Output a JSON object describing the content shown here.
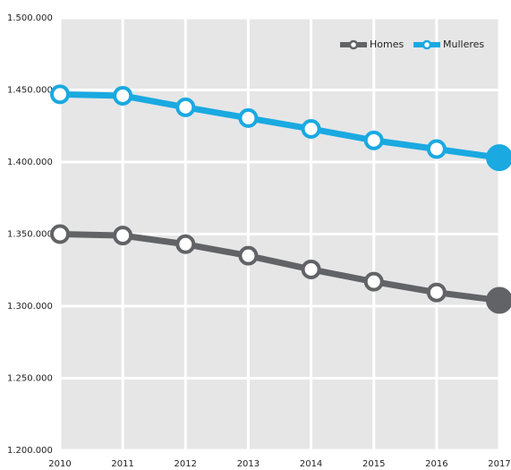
{
  "chart_data": {
    "type": "line",
    "categories": [
      "2010",
      "2011",
      "2012",
      "2013",
      "2014",
      "2015",
      "2016",
      "2017"
    ],
    "series": [
      {
        "name": "Homes",
        "color": "#626366",
        "values": [
          1350000,
          1349000,
          1343000,
          1335000,
          1325500,
          1317000,
          1309500,
          1304000
        ]
      },
      {
        "name": "Mulleres",
        "color": "#1aa9e1",
        "values": [
          1447000,
          1446000,
          1438000,
          1430500,
          1423000,
          1415000,
          1409000,
          1403000
        ]
      }
    ],
    "ylim": [
      1200000,
      1500000
    ],
    "yticks": [
      {
        "value": 1200000,
        "label": "1.200.000"
      },
      {
        "value": 1250000,
        "label": "1.250.000"
      },
      {
        "value": 1300000,
        "label": "1.300.000"
      },
      {
        "value": 1350000,
        "label": "1.350.000"
      },
      {
        "value": 1400000,
        "label": "1.400.000"
      },
      {
        "value": 1450000,
        "label": "1.450.000"
      },
      {
        "value": 1500000,
        "label": "1.500.000"
      }
    ],
    "grid": true,
    "legend": "top-right"
  }
}
